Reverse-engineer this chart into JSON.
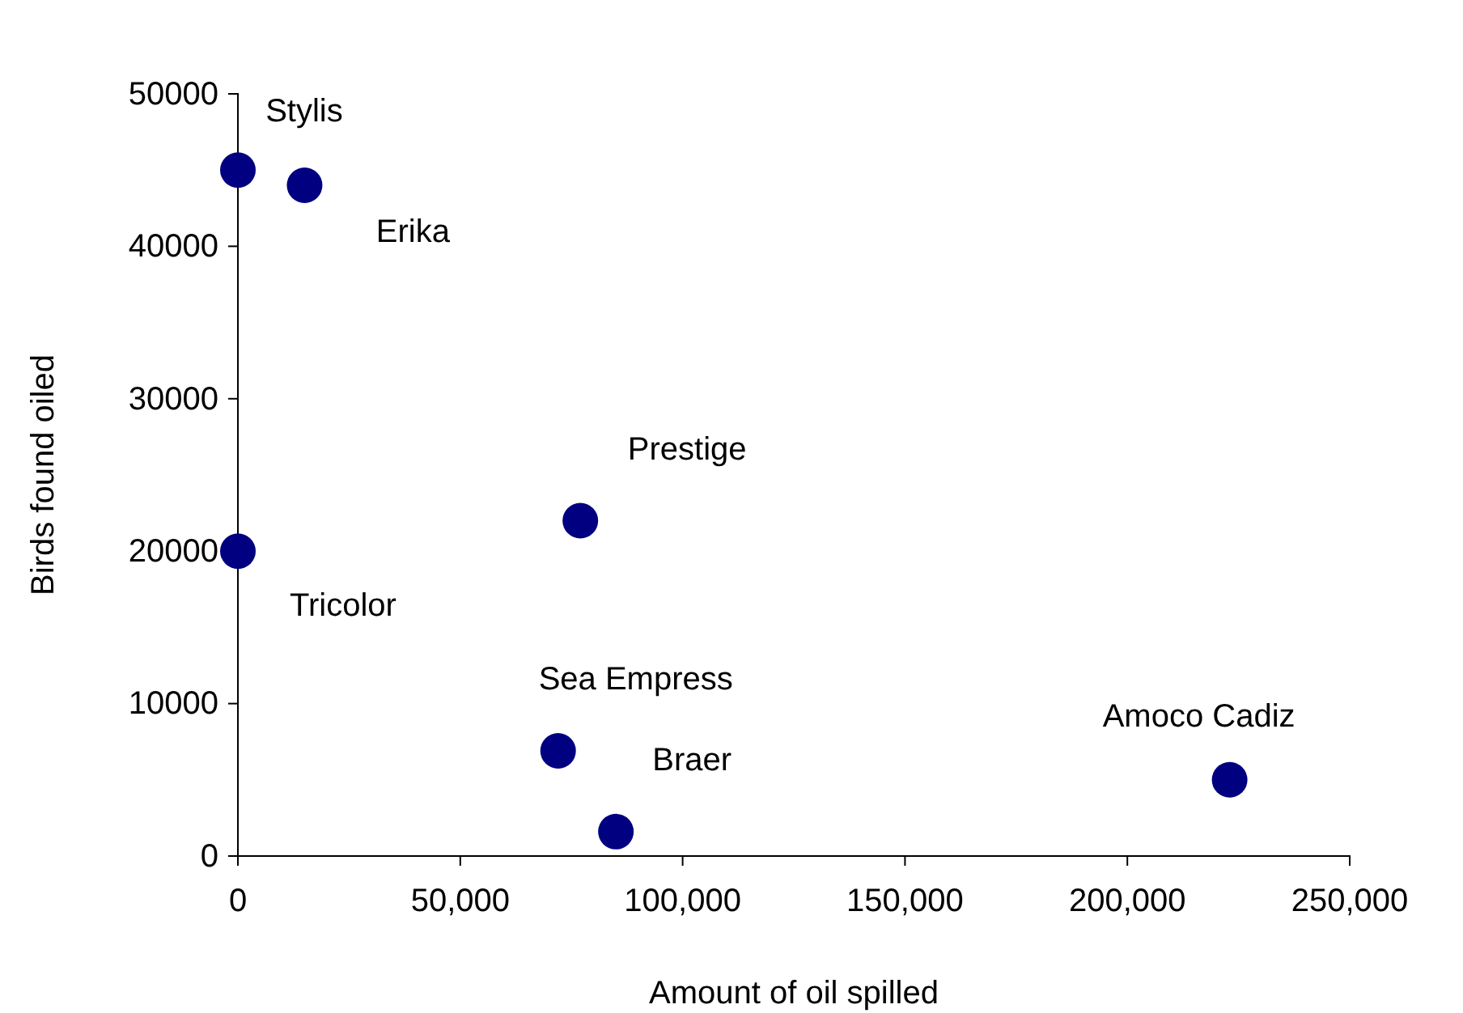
{
  "chart_data": {
    "type": "scatter",
    "xlabel": "Amount of oil spilled",
    "ylabel": "Birds found oiled",
    "xlim": [
      0,
      250000
    ],
    "ylim": [
      0,
      50000
    ],
    "xticks": [
      {
        "value": 0,
        "label": "0"
      },
      {
        "value": 50000,
        "label": "50,000"
      },
      {
        "value": 100000,
        "label": "100,000"
      },
      {
        "value": 150000,
        "label": "150,000"
      },
      {
        "value": 200000,
        "label": "200,000"
      },
      {
        "value": 250000,
        "label": "250,000"
      }
    ],
    "yticks": [
      0,
      10000,
      20000,
      30000,
      40000,
      50000
    ],
    "grid": false,
    "marker": "circle",
    "series": [
      {
        "color": "#000080",
        "x": [
          0,
          15000,
          77000,
          0,
          72000,
          85000,
          223000
        ],
        "values": [
          45000,
          44000,
          22000,
          20000,
          6900,
          1600,
          5000
        ]
      }
    ],
    "annotations": [
      {
        "text": "Stylis",
        "x": 0,
        "y": 45000
      },
      {
        "text": "Erika",
        "x": 15000,
        "y": 44000
      },
      {
        "text": "Prestige",
        "x": 77000,
        "y": 22000
      },
      {
        "text": "Tricolor",
        "x": 0,
        "y": 20000
      },
      {
        "text": "Sea Empress",
        "x": 72000,
        "y": 6900
      },
      {
        "text": "Braer",
        "x": 85000,
        "y": 1600
      },
      {
        "text": "Amoco Cadiz",
        "x": 223000,
        "y": 5000
      }
    ]
  }
}
